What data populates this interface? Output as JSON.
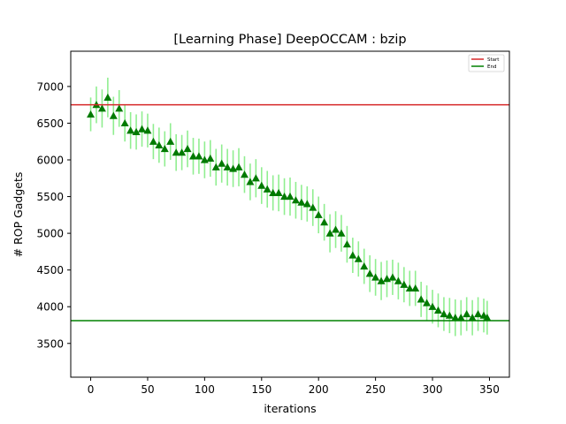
{
  "chart_data": {
    "type": "scatter",
    "title": "[Learning Phase] DeepOCCAM : bzip",
    "xlabel": "iterations",
    "ylabel": "# ROP Gadgets",
    "xlim": [
      -17.5,
      367.5
    ],
    "ylim": [
      3040,
      7480
    ],
    "xticks": [
      0,
      50,
      100,
      150,
      200,
      250,
      300,
      350
    ],
    "yticks": [
      3500,
      4000,
      4500,
      5000,
      5500,
      6000,
      6500,
      7000
    ],
    "grid": false,
    "legend_position": "top-right",
    "legend": [
      {
        "label": "Start",
        "color": "#d62728"
      },
      {
        "label": "End",
        "color": "#008000"
      }
    ],
    "reference_lines": [
      {
        "name": "Start",
        "y": 6750,
        "color": "#d62728"
      },
      {
        "name": "End",
        "y": 3810,
        "color": "#008000"
      }
    ],
    "series": [
      {
        "marker": "triangle",
        "marker_color": "#007a00",
        "errorbar_color": "#90ee90",
        "x": [
          0,
          5,
          10,
          15,
          20,
          25,
          30,
          35,
          40,
          45,
          50,
          55,
          60,
          65,
          70,
          75,
          80,
          85,
          90,
          95,
          100,
          105,
          110,
          115,
          120,
          125,
          130,
          135,
          140,
          145,
          150,
          155,
          160,
          165,
          170,
          175,
          180,
          185,
          190,
          195,
          200,
          205,
          210,
          215,
          220,
          225,
          230,
          235,
          240,
          245,
          250,
          255,
          260,
          265,
          270,
          275,
          280,
          285,
          290,
          295,
          300,
          305,
          310,
          315,
          320,
          325,
          330,
          335,
          340,
          345,
          348
        ],
        "y": [
          6620,
          6750,
          6700,
          6850,
          6600,
          6700,
          6500,
          6400,
          6380,
          6420,
          6400,
          6250,
          6200,
          6150,
          6250,
          6100,
          6100,
          6150,
          6050,
          6050,
          6000,
          6020,
          5900,
          5950,
          5900,
          5880,
          5900,
          5800,
          5700,
          5750,
          5650,
          5600,
          5550,
          5550,
          5500,
          5500,
          5450,
          5420,
          5400,
          5350,
          5250,
          5150,
          5000,
          5050,
          5000,
          4850,
          4700,
          4650,
          4550,
          4450,
          4400,
          4350,
          4380,
          4400,
          4350,
          4300,
          4250,
          4250,
          4100,
          4050,
          4000,
          3950,
          3900,
          3880,
          3850,
          3850,
          3900,
          3850,
          3900,
          3880,
          3850
        ],
        "yerr": [
          230,
          250,
          260,
          270,
          260,
          250,
          250,
          250,
          240,
          240,
          230,
          240,
          240,
          240,
          250,
          250,
          240,
          250,
          250,
          240,
          250,
          250,
          250,
          260,
          250,
          250,
          260,
          250,
          250,
          260,
          250,
          250,
          240,
          250,
          250,
          260,
          250,
          240,
          240,
          250,
          250,
          250,
          260,
          250,
          250,
          250,
          240,
          240,
          240,
          250,
          250,
          260,
          250,
          240,
          250,
          240,
          240,
          240,
          240,
          240,
          230,
          230,
          230,
          240,
          250,
          240,
          230,
          240,
          230,
          230,
          230
        ]
      }
    ]
  }
}
